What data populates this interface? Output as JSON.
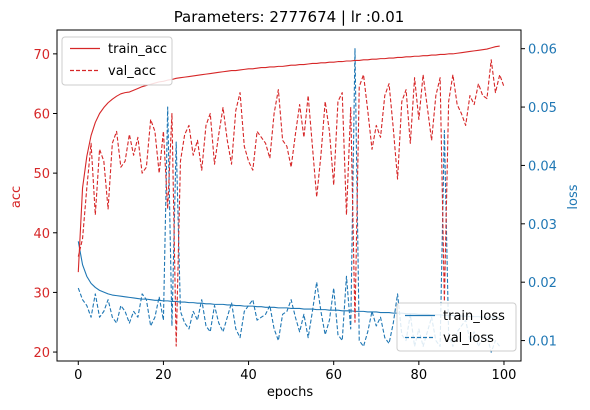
{
  "chart_data": {
    "type": "line",
    "title": "Parameters: 2777674 | lr :0.01",
    "xlabel": "epochs",
    "ylabel_left": "acc",
    "ylabel_right": "loss",
    "xlim": [
      -5,
      104
    ],
    "ylim_left": [
      18.5,
      74
    ],
    "ylim_right": [
      0.0065,
      0.0632
    ],
    "x_ticks": [
      0,
      20,
      40,
      60,
      80,
      100
    ],
    "y_ticks_left": [
      20,
      30,
      40,
      50,
      60,
      70
    ],
    "y_ticks_right": [
      0.01,
      0.02,
      0.03,
      0.04,
      0.05,
      0.06
    ],
    "grid": false,
    "legend_left_location": "upper left",
    "legend_right_location": "lower right",
    "colors": {
      "acc": "#d62728",
      "loss": "#1f77b4"
    },
    "series_left": [
      {
        "name": "train_acc",
        "style": "solid",
        "values": [
          33.4,
          47.5,
          52.8,
          56.3,
          58.5,
          60.0,
          61.0,
          61.8,
          62.4,
          62.9,
          63.3,
          63.5,
          63.6,
          63.9,
          64.2,
          64.5,
          64.7,
          64.9,
          65.1,
          65.3,
          65.4,
          65.6,
          65.7,
          65.9,
          66.0,
          66.1,
          66.2,
          66.3,
          66.4,
          66.5,
          66.6,
          66.7,
          66.8,
          66.9,
          67.0,
          67.1,
          67.2,
          67.2,
          67.3,
          67.4,
          67.5,
          67.5,
          67.6,
          67.7,
          67.7,
          67.8,
          67.8,
          67.9,
          67.9,
          68.0,
          68.1,
          68.1,
          68.2,
          68.2,
          68.3,
          68.4,
          68.4,
          68.5,
          68.5,
          68.6,
          68.6,
          68.7,
          68.7,
          68.8,
          68.8,
          68.9,
          68.9,
          69.0,
          69.0,
          69.1,
          69.1,
          69.2,
          69.2,
          69.3,
          69.3,
          69.4,
          69.4,
          69.5,
          69.5,
          69.6,
          69.6,
          69.7,
          69.7,
          69.8,
          69.8,
          69.9,
          69.9,
          70.0,
          70.0,
          70.1,
          70.2,
          70.3,
          70.4,
          70.5,
          70.6,
          70.7,
          70.8,
          71.0,
          71.2,
          71.3
        ]
      },
      {
        "name": "val_acc",
        "style": "dashed",
        "values": [
          36.0,
          39.0,
          47.5,
          55.0,
          43.0,
          54.0,
          52.0,
          44.0,
          55.0,
          57.0,
          51.0,
          52.0,
          56.5,
          53.0,
          56.0,
          50.0,
          51.0,
          59.0,
          57.0,
          50.0,
          57.0,
          44.0,
          60.0,
          21.0,
          52.0,
          56.5,
          58.0,
          53.0,
          55.5,
          50.5,
          58.0,
          60.0,
          51.5,
          56.5,
          61.0,
          55.5,
          51.5,
          60.5,
          63.5,
          54.5,
          52.0,
          50.5,
          57.0,
          56.0,
          55.0,
          52.5,
          60.0,
          64.0,
          55.5,
          54.5,
          51.0,
          56.5,
          61.5,
          56.0,
          63.0,
          54.5,
          46.0,
          53.0,
          62.0,
          57.0,
          48.0,
          62.0,
          63.5,
          43.0,
          61.0,
          25.0,
          64.5,
          66.5,
          60.5,
          54.0,
          58.0,
          56.0,
          63.0,
          65.0,
          57.5,
          49.0,
          62.0,
          64.0,
          55.0,
          66.0,
          59.0,
          66.5,
          61.0,
          55.5,
          63.0,
          66.0,
          28.5,
          62.0,
          66.5,
          61.5,
          60.0,
          58.0,
          63.0,
          61.5,
          65.0,
          63.0,
          62.5,
          69.0,
          63.5,
          66.5,
          64.5
        ]
      }
    ],
    "series_right": [
      {
        "name": "train_loss",
        "style": "solid",
        "values": [
          0.027,
          0.023,
          0.021,
          0.0198,
          0.0191,
          0.0186,
          0.0183,
          0.018,
          0.0178,
          0.0177,
          0.0176,
          0.0175,
          0.0174,
          0.0173,
          0.0172,
          0.0171,
          0.0171,
          0.017,
          0.0169,
          0.0169,
          0.0168,
          0.0168,
          0.0167,
          0.0167,
          0.0166,
          0.0166,
          0.0165,
          0.0165,
          0.0164,
          0.0164,
          0.0163,
          0.0163,
          0.0162,
          0.0162,
          0.0162,
          0.0161,
          0.0161,
          0.016,
          0.016,
          0.0159,
          0.0159,
          0.0159,
          0.0158,
          0.0158,
          0.0157,
          0.0157,
          0.0157,
          0.0156,
          0.0156,
          0.0156,
          0.0155,
          0.0155,
          0.0155,
          0.0154,
          0.0154,
          0.0154,
          0.0153,
          0.0153,
          0.0153,
          0.0152,
          0.0152,
          0.0152,
          0.0151,
          0.0151,
          0.0151,
          0.015,
          0.015,
          0.015,
          0.0149,
          0.0149,
          0.0149,
          0.0148,
          0.0148,
          0.0148,
          0.0147,
          0.0147,
          0.0147,
          0.0146,
          0.0146,
          0.0146,
          0.0145,
          0.0145,
          0.0145,
          0.0144,
          0.0144,
          0.0144,
          0.0143,
          0.0143,
          0.0143,
          0.0142,
          0.0142,
          0.0142,
          0.0141,
          0.0141,
          0.0141,
          0.014,
          0.014,
          0.014,
          0.0139,
          0.0139
        ]
      },
      {
        "name": "val_loss",
        "style": "dashed",
        "values": [
          0.019,
          0.017,
          0.016,
          0.014,
          0.018,
          0.014,
          0.015,
          0.017,
          0.014,
          0.013,
          0.016,
          0.015,
          0.013,
          0.015,
          0.014,
          0.018,
          0.017,
          0.0125,
          0.014,
          0.0175,
          0.0135,
          0.05,
          0.0125,
          0.044,
          0.015,
          0.013,
          0.012,
          0.015,
          0.0135,
          0.017,
          0.0125,
          0.0115,
          0.016,
          0.013,
          0.0115,
          0.014,
          0.0165,
          0.012,
          0.0105,
          0.015,
          0.016,
          0.017,
          0.0135,
          0.014,
          0.0145,
          0.016,
          0.012,
          0.01,
          0.0145,
          0.015,
          0.017,
          0.014,
          0.0115,
          0.0145,
          0.0105,
          0.015,
          0.02,
          0.015,
          0.011,
          0.0135,
          0.019,
          0.011,
          0.01,
          0.021,
          0.012,
          0.06,
          0.01,
          0.009,
          0.0115,
          0.015,
          0.0125,
          0.014,
          0.0105,
          0.0095,
          0.013,
          0.018,
          0.011,
          0.01,
          0.0145,
          0.009,
          0.012,
          0.009,
          0.0115,
          0.014,
          0.01,
          0.009,
          0.046,
          0.011,
          0.009,
          0.0115,
          0.0125,
          0.0135,
          0.01,
          0.0115,
          0.009,
          0.0105,
          0.011,
          0.008,
          0.01,
          0.009
        ]
      }
    ]
  }
}
